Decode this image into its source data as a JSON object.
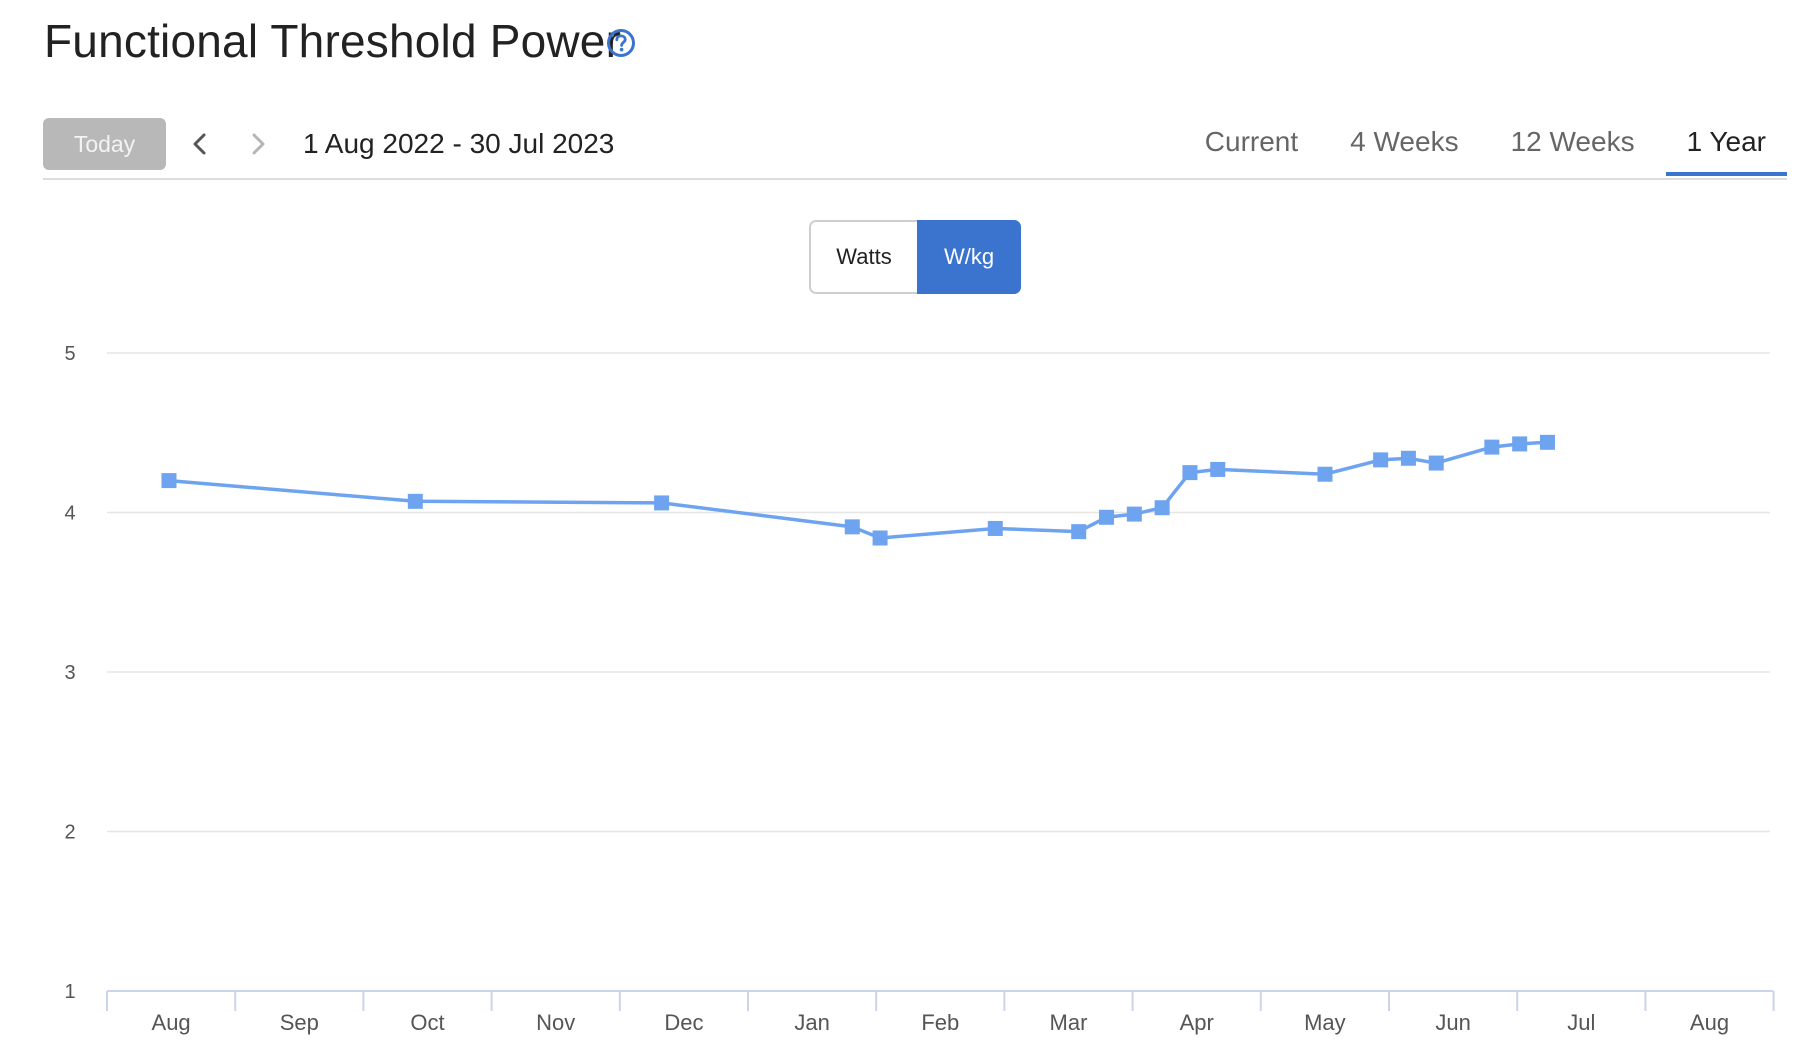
{
  "header": {
    "title": "Functional Threshold Power",
    "help_icon": "question-circle-icon"
  },
  "toolbar": {
    "today_label": "Today",
    "prev_icon": "chevron-left-icon",
    "next_icon": "chevron-right-icon",
    "date_range": "1 Aug 2022 - 30 Jul 2023",
    "tabs": [
      {
        "label": "Current",
        "active": false
      },
      {
        "label": "4 Weeks",
        "active": false
      },
      {
        "label": "12 Weeks",
        "active": false
      },
      {
        "label": "1 Year",
        "active": true
      }
    ]
  },
  "unit_toggle": {
    "watts_label": "Watts",
    "wkg_label": "W/kg",
    "selected": "W/kg"
  },
  "colors": {
    "accent": "#3a74cf",
    "series": "#6ea3f0",
    "today_bg": "#b8b8b8",
    "grid": "#e6e6e6",
    "axis": "#c9d6ea"
  },
  "chart_data": {
    "type": "line",
    "marker": "square",
    "x_categories": [
      "Aug",
      "Sep",
      "Oct",
      "Nov",
      "Dec",
      "Jan",
      "Feb",
      "Mar",
      "Apr",
      "May",
      "Jun",
      "Jul",
      "Aug"
    ],
    "yticks": [
      1,
      2,
      3,
      4,
      5
    ],
    "ylim": [
      1,
      5
    ],
    "grid": true,
    "series": [
      {
        "points": [
          {
            "x": "2022-08-01",
            "y": 4.2
          },
          {
            "x": "2022-10-02",
            "y": 4.07
          },
          {
            "x": "2022-12-03",
            "y": 4.06
          },
          {
            "x": "2023-01-20",
            "y": 3.91
          },
          {
            "x": "2023-01-27",
            "y": 3.84
          },
          {
            "x": "2023-02-25",
            "y": 3.9
          },
          {
            "x": "2023-03-18",
            "y": 3.88
          },
          {
            "x": "2023-03-25",
            "y": 3.97
          },
          {
            "x": "2023-04-01",
            "y": 3.99
          },
          {
            "x": "2023-04-08",
            "y": 4.03
          },
          {
            "x": "2023-04-15",
            "y": 4.25
          },
          {
            "x": "2023-04-22",
            "y": 4.27
          },
          {
            "x": "2023-05-19",
            "y": 4.24
          },
          {
            "x": "2023-06-02",
            "y": 4.33
          },
          {
            "x": "2023-06-09",
            "y": 4.34
          },
          {
            "x": "2023-06-16",
            "y": 4.31
          },
          {
            "x": "2023-06-30",
            "y": 4.41
          },
          {
            "x": "2023-07-07",
            "y": 4.43
          },
          {
            "x": "2023-07-14",
            "y": 4.44
          }
        ]
      }
    ]
  }
}
